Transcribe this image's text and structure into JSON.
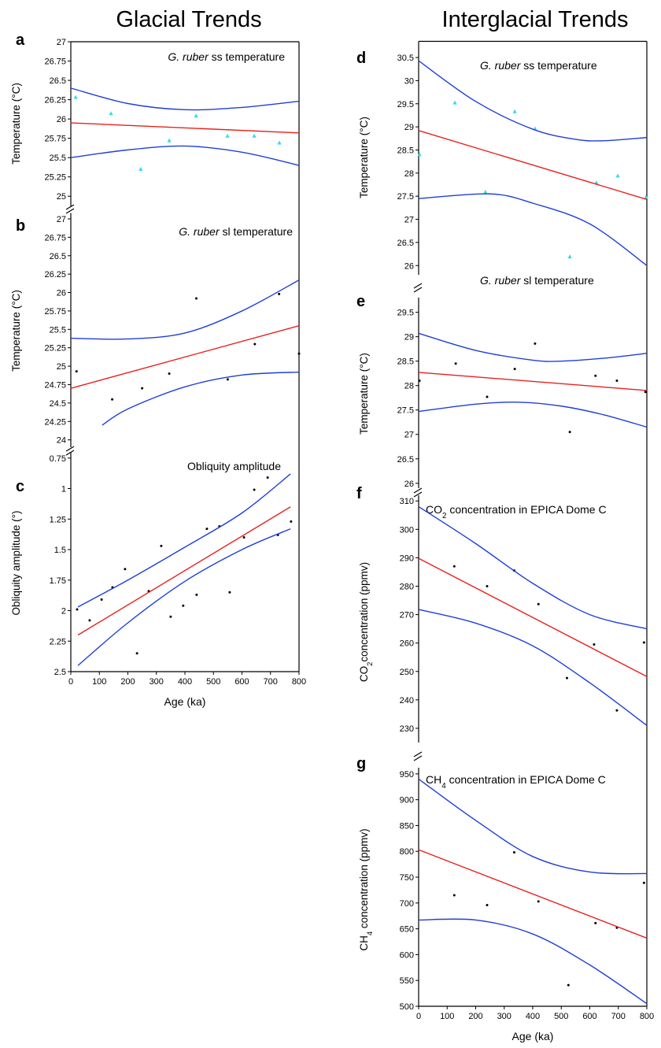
{
  "column_titles": [
    "Glacial Trends",
    "Interglacial Trends"
  ],
  "chart_data": [
    {
      "type": "scatter",
      "panel": "a",
      "title": [
        {
          "text": "G. ruber",
          "italic": true
        },
        {
          "text": " ss temperature"
        }
      ],
      "ylabel": [
        {
          "text": "Temperature (°C)"
        }
      ],
      "xlim": [
        0,
        800
      ],
      "ylim": [
        24.87,
        27
      ],
      "yticks": [
        25,
        25.25,
        25.5,
        25.75,
        26,
        26.25,
        26.5,
        26.75,
        27
      ],
      "series": [
        {
          "kind": "points",
          "marker": "triangle",
          "color": "#2fdde9",
          "x": [
            17,
            141,
            245,
            345,
            439,
            549,
            643,
            731
          ],
          "values": [
            26.28,
            26.07,
            25.35,
            25.72,
            26.04,
            25.78,
            25.78,
            25.69
          ]
        },
        {
          "kind": "line",
          "color": "#e8221e",
          "x": [
            0,
            800
          ],
          "values": [
            25.95,
            25.82
          ]
        },
        {
          "kind": "line",
          "color": "#1f3fd8",
          "x": [
            0,
            200,
            400,
            600,
            800
          ],
          "values": [
            26.4,
            26.2,
            26.12,
            26.15,
            26.23
          ]
        },
        {
          "kind": "line",
          "color": "#1f3fd8",
          "x": [
            0,
            200,
            400,
            600,
            800
          ],
          "values": [
            25.5,
            25.6,
            25.65,
            25.57,
            25.4
          ]
        }
      ]
    },
    {
      "type": "scatter",
      "panel": "b",
      "title": [
        {
          "text": "G. ruber",
          "italic": true
        },
        {
          "text": " sl temperature"
        }
      ],
      "ylabel": [
        {
          "text": "Temperature (°C)"
        }
      ],
      "xlim": [
        0,
        800
      ],
      "ylim": [
        23.9,
        27.08
      ],
      "yticks": [
        24,
        24.25,
        24.5,
        24.75,
        25,
        25.25,
        25.5,
        25.75,
        26,
        26.25,
        26.5,
        26.75,
        27
      ],
      "series": [
        {
          "kind": "points",
          "marker": "dot",
          "color": "#000000",
          "x": [
            20,
            145,
            250,
            345,
            440,
            550,
            645,
            730,
            800
          ],
          "values": [
            24.93,
            24.55,
            24.7,
            24.9,
            25.92,
            24.82,
            25.3,
            25.98,
            25.17
          ]
        },
        {
          "kind": "line",
          "color": "#e8221e",
          "x": [
            0,
            800
          ],
          "values": [
            24.7,
            25.55
          ]
        },
        {
          "kind": "line",
          "color": "#1f3fd8",
          "x": [
            0,
            200,
            400,
            600,
            800
          ],
          "values": [
            25.38,
            25.37,
            25.45,
            25.75,
            26.17
          ]
        },
        {
          "kind": "line",
          "color": "#1f3fd8",
          "x": [
            110,
            200,
            400,
            600,
            800
          ],
          "values": [
            24.2,
            24.42,
            24.72,
            24.88,
            24.92
          ]
        }
      ]
    },
    {
      "type": "scatter",
      "panel": "c",
      "title": [
        {
          "text": "Obliquity amplitude"
        }
      ],
      "ylabel": [
        {
          "text": "Obliquity amplitude (°)"
        }
      ],
      "xlabel": "Age (ka)",
      "xlim": [
        0,
        800
      ],
      "ylim": [
        2.5,
        0.7
      ],
      "xticks": [
        0,
        100,
        200,
        300,
        400,
        500,
        600,
        700,
        800
      ],
      "yticks": [
        0.75,
        1,
        1.25,
        1.5,
        1.75,
        2,
        2.25,
        2.5
      ],
      "series": [
        {
          "kind": "points",
          "marker": "dot",
          "color": "#000000",
          "x": [
            22,
            66,
            108,
            146,
            190,
            232,
            273,
            317,
            350,
            394,
            441,
            477,
            521,
            557,
            607,
            643,
            690,
            726,
            772
          ],
          "values": [
            1.99,
            2.08,
            1.91,
            1.81,
            1.66,
            2.35,
            1.84,
            1.47,
            2.05,
            1.96,
            1.87,
            1.33,
            1.31,
            1.85,
            1.4,
            1.01,
            0.91,
            1.38,
            1.27
          ]
        },
        {
          "kind": "line",
          "color": "#e8221e",
          "x": [
            25,
            770
          ],
          "values": [
            2.2,
            1.15
          ]
        },
        {
          "kind": "line",
          "color": "#1f3fd8",
          "x": [
            25,
            200,
            400,
            600,
            770
          ],
          "values": [
            1.97,
            1.75,
            1.48,
            1.2,
            0.88
          ]
        },
        {
          "kind": "line",
          "color": "#1f3fd8",
          "x": [
            25,
            200,
            400,
            600,
            770
          ],
          "values": [
            2.45,
            2.1,
            1.76,
            1.5,
            1.33
          ]
        }
      ]
    },
    {
      "type": "scatter",
      "panel": "d",
      "title": [
        {
          "text": "G. ruber",
          "italic": true
        },
        {
          "text": " ss temperature"
        }
      ],
      "ylabel": [
        {
          "text": "Temperature (°C)"
        }
      ],
      "xlim": [
        0,
        800
      ],
      "ylim": [
        25.8,
        30.85
      ],
      "yticks": [
        26,
        26.5,
        27,
        27.5,
        28,
        28.5,
        29,
        29.5,
        30,
        30.5
      ],
      "series": [
        {
          "kind": "points",
          "marker": "triangle",
          "color": "#2fdde9",
          "x": [
            3,
            127,
            234,
            337,
            408,
            530,
            623,
            698,
            797
          ],
          "values": [
            28.4,
            29.52,
            27.59,
            29.33,
            28.96,
            26.19,
            27.79,
            27.94,
            27.48
          ]
        },
        {
          "kind": "line",
          "color": "#e8221e",
          "x": [
            0,
            800
          ],
          "values": [
            28.92,
            27.43
          ]
        },
        {
          "kind": "line",
          "color": "#1f3fd8",
          "x": [
            0,
            200,
            400,
            550,
            650,
            800
          ],
          "values": [
            30.43,
            29.55,
            28.95,
            28.73,
            28.7,
            28.77
          ]
        },
        {
          "kind": "line",
          "color": "#1f3fd8",
          "x": [
            0,
            250,
            400,
            600,
            800
          ],
          "values": [
            27.45,
            27.55,
            27.35,
            26.9,
            26
          ]
        }
      ]
    },
    {
      "type": "scatter",
      "panel": "e",
      "title": [
        {
          "text": "G. ruber",
          "italic": true
        },
        {
          "text": " sl temperature"
        }
      ],
      "ylabel": [
        {
          "text": "Temperature (°C)"
        }
      ],
      "xlim": [
        0,
        800
      ],
      "ylim": [
        25.9,
        29.8
      ],
      "yticks": [
        26,
        26.5,
        27,
        27.5,
        28,
        28.5,
        29,
        29.5
      ],
      "series": [
        {
          "kind": "points",
          "marker": "dot",
          "color": "#000000",
          "x": [
            3,
            130,
            240,
            337,
            408,
            530,
            620,
            695,
            795
          ],
          "values": [
            28.1,
            28.45,
            27.77,
            28.34,
            28.86,
            27.05,
            28.2,
            28.1,
            27.87
          ]
        },
        {
          "kind": "line",
          "color": "#e8221e",
          "x": [
            0,
            800
          ],
          "values": [
            28.27,
            27.9
          ]
        },
        {
          "kind": "line",
          "color": "#1f3fd8",
          "x": [
            0,
            200,
            400,
            500,
            650,
            800
          ],
          "values": [
            29.07,
            28.72,
            28.52,
            28.5,
            28.56,
            28.66
          ]
        },
        {
          "kind": "line",
          "color": "#1f3fd8",
          "x": [
            0,
            200,
            350,
            500,
            650,
            800
          ],
          "values": [
            27.47,
            27.62,
            27.66,
            27.58,
            27.4,
            27.15
          ]
        }
      ]
    },
    {
      "type": "scatter",
      "panel": "f",
      "title": [
        {
          "text": "CO"
        },
        {
          "text": "2",
          "sub": true
        },
        {
          "text": " concentration in EPICA Dome C"
        }
      ],
      "ylabel": [
        {
          "text": "CO"
        },
        {
          "text": "2",
          "sub": true
        },
        {
          "text": "concentration (ppmv)"
        }
      ],
      "xlim": [
        0,
        800
      ],
      "ylim": [
        225,
        312
      ],
      "yticks": [
        230,
        240,
        250,
        260,
        270,
        280,
        290,
        300,
        310
      ],
      "series": [
        {
          "kind": "points",
          "marker": "dot",
          "color": "#000000",
          "x": [
            125,
            240,
            335,
            420,
            520,
            615,
            695,
            790
          ],
          "values": [
            287,
            280,
            285.5,
            273.7,
            247.7,
            259.5,
            236.3,
            260.2
          ]
        },
        {
          "kind": "line",
          "color": "#e8221e",
          "x": [
            0,
            800
          ],
          "values": [
            289.8,
            248.2
          ]
        },
        {
          "kind": "line",
          "color": "#1f3fd8",
          "x": [
            0,
            200,
            400,
            600,
            800
          ],
          "values": [
            308,
            295,
            281,
            270,
            265
          ]
        },
        {
          "kind": "line",
          "color": "#1f3fd8",
          "x": [
            0,
            200,
            400,
            600,
            800
          ],
          "values": [
            271.8,
            267,
            259,
            246,
            231
          ]
        }
      ]
    },
    {
      "type": "scatter",
      "panel": "g",
      "title": [
        {
          "text": "CH"
        },
        {
          "text": "4",
          "sub": true
        },
        {
          "text": " concentration in EPICA Dome C"
        }
      ],
      "ylabel": [
        {
          "text": "CH"
        },
        {
          "text": "4",
          "sub": true
        },
        {
          "text": " concentration (ppmv)"
        }
      ],
      "xlabel": "Age (ka)",
      "xlim": [
        0,
        800
      ],
      "ylim": [
        500,
        962
      ],
      "xticks": [
        0,
        100,
        200,
        300,
        400,
        500,
        600,
        700,
        800
      ],
      "yticks": [
        500,
        550,
        600,
        650,
        700,
        750,
        800,
        850,
        900,
        950
      ],
      "series": [
        {
          "kind": "points",
          "marker": "dot",
          "color": "#000000",
          "x": [
            125,
            240,
            335,
            420,
            525,
            620,
            695,
            790
          ],
          "values": [
            715,
            696,
            798,
            703,
            541,
            661,
            652,
            739
          ]
        },
        {
          "kind": "line",
          "color": "#e8221e",
          "x": [
            0,
            800
          ],
          "values": [
            803,
            632
          ]
        },
        {
          "kind": "line",
          "color": "#1f3fd8",
          "x": [
            0,
            200,
            400,
            600,
            800
          ],
          "values": [
            940,
            860,
            790,
            760,
            757
          ]
        },
        {
          "kind": "line",
          "color": "#1f3fd8",
          "x": [
            0,
            200,
            400,
            600,
            800
          ],
          "values": [
            667,
            667,
            640,
            580,
            505
          ]
        }
      ]
    }
  ]
}
